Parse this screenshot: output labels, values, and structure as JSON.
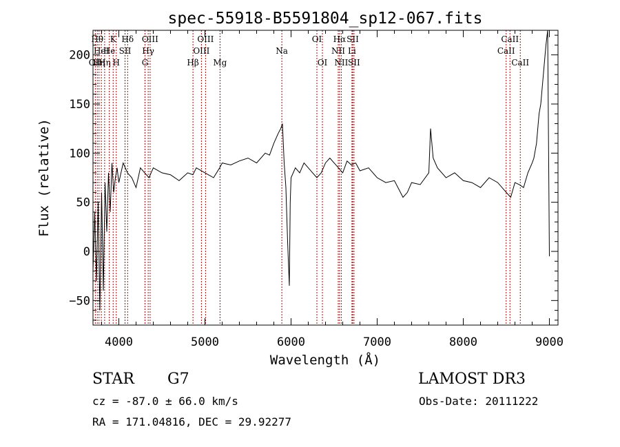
{
  "chart_data": {
    "type": "line",
    "title": "spec-55918-B5591804_sp12-067.fits",
    "xlabel": "Wavelength (Å)",
    "ylabel": "Flux (relative)",
    "xlim": [
      3700,
      9100
    ],
    "ylim": [
      -75,
      225
    ],
    "xticks": [
      4000,
      5000,
      6000,
      7000,
      8000,
      9000
    ],
    "yticks": [
      -50,
      0,
      50,
      100,
      150,
      200
    ],
    "grid": false,
    "line_color": "#000000",
    "marker_color": "#aa0000",
    "series": [
      {
        "x": [
          3700,
          3720,
          3740,
          3760,
          3780,
          3800,
          3820,
          3840,
          3860,
          3880,
          3900,
          3920,
          3940,
          3960,
          3980,
          4000,
          4050,
          4100,
          4150,
          4200,
          4250,
          4300,
          4350,
          4400,
          4500,
          4600,
          4700,
          4800,
          4860,
          4900,
          5000,
          5100,
          5170,
          5200,
          5300,
          5400,
          5500,
          5600,
          5700,
          5750,
          5800,
          5850,
          5880,
          5900,
          5920,
          5940,
          5960,
          5980,
          5990,
          6000,
          6050,
          6100,
          6150,
          6200,
          6250,
          6300,
          6350,
          6400,
          6450,
          6500,
          6550,
          6600,
          6650,
          6700,
          6750,
          6800,
          6900,
          7000,
          7100,
          7200,
          7300,
          7350,
          7400,
          7500,
          7600,
          7620,
          7650,
          7700,
          7800,
          7900,
          8000,
          8100,
          8200,
          8300,
          8400,
          8500,
          8550,
          8600,
          8650,
          8700,
          8750,
          8800,
          8820,
          8850,
          8880,
          8900,
          8920,
          8940,
          8960,
          8980,
          9000
        ],
        "y": [
          -20,
          40,
          -30,
          50,
          -60,
          60,
          -40,
          70,
          20,
          80,
          40,
          90,
          60,
          75,
          85,
          70,
          90,
          80,
          75,
          65,
          85,
          80,
          75,
          85,
          80,
          78,
          72,
          80,
          78,
          85,
          80,
          75,
          85,
          90,
          88,
          92,
          95,
          90,
          100,
          98,
          110,
          120,
          125,
          130,
          90,
          65,
          10,
          -35,
          50,
          75,
          85,
          80,
          90,
          85,
          80,
          75,
          80,
          90,
          95,
          90,
          85,
          80,
          92,
          88,
          90,
          82,
          85,
          75,
          70,
          72,
          55,
          60,
          70,
          68,
          80,
          125,
          95,
          85,
          75,
          80,
          72,
          70,
          65,
          75,
          70,
          60,
          55,
          70,
          68,
          65,
          80,
          90,
          95,
          110,
          140,
          150,
          170,
          190,
          210,
          230,
          -5
        ]
      }
    ],
    "lines": [
      {
        "w": 3727,
        "label": "OII",
        "row": 3
      },
      {
        "w": 3750,
        "label": "Hθ",
        "row": 1
      },
      {
        "w": 3770,
        "label": "Hη",
        "row": 3
      },
      {
        "w": 3797,
        "label": "HeI",
        "row": 2
      },
      {
        "w": 3835,
        "label": "Hη",
        "row": 3
      },
      {
        "w": 3889,
        "label": "He",
        "row": 2
      },
      {
        "w": 3934,
        "label": "K",
        "row": 1
      },
      {
        "w": 3970,
        "label": "H",
        "row": 3
      },
      {
        "w": 4072,
        "label": "SII",
        "row": 2
      },
      {
        "w": 4102,
        "label": "Hδ",
        "row": 1
      },
      {
        "w": 4304,
        "label": "G",
        "row": 3
      },
      {
        "w": 4341,
        "label": "Hγ",
        "row": 2
      },
      {
        "w": 4363,
        "label": "OIII",
        "row": 1
      },
      {
        "w": 4861,
        "label": "Hβ",
        "row": 3
      },
      {
        "w": 4959,
        "label": "OIII",
        "row": 2
      },
      {
        "w": 5007,
        "label": "OIII",
        "row": 1
      },
      {
        "w": 5175,
        "label": "Mg",
        "row": 3
      },
      {
        "w": 5893,
        "label": "Na",
        "row": 2
      },
      {
        "w": 6300,
        "label": "OI",
        "row": 1
      },
      {
        "w": 6364,
        "label": "OI",
        "row": 3
      },
      {
        "w": 6548,
        "label": "NII",
        "row": 2
      },
      {
        "w": 6563,
        "label": "Hα",
        "row": 1
      },
      {
        "w": 6583,
        "label": "NII",
        "row": 3
      },
      {
        "w": 6707,
        "label": "Li",
        "row": 2
      },
      {
        "w": 6716,
        "label": "SII",
        "row": 1
      },
      {
        "w": 6731,
        "label": "SII",
        "row": 3
      },
      {
        "w": 8498,
        "label": "CaII",
        "row": 2
      },
      {
        "w": 8542,
        "label": "CaII",
        "row": 1
      },
      {
        "w": 8662,
        "label": "CaII",
        "row": 3
      }
    ]
  },
  "info": {
    "class_label": "STAR",
    "subclass_label": "G7",
    "survey": "LAMOST DR3",
    "redshift": "cz = -87.0 ± 66.0 km/s",
    "obs_date": "Obs-Date: 20111222",
    "coords": "RA = 171.04816, DEC =  29.92277"
  }
}
